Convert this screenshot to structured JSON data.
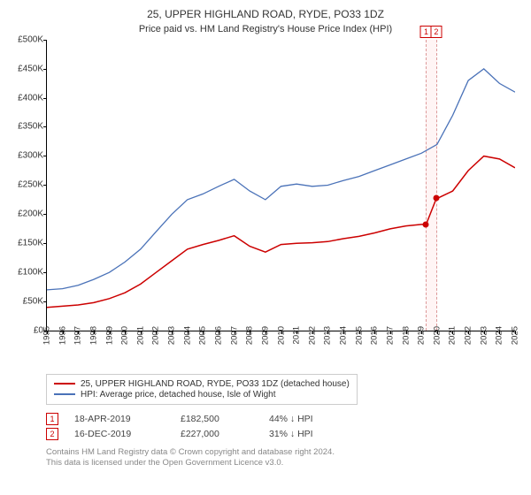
{
  "title": "25, UPPER HIGHLAND ROAD, RYDE, PO33 1DZ",
  "subtitle": "Price paid vs. HM Land Registry's House Price Index (HPI)",
  "chart": {
    "type": "line",
    "background_color": "#ffffff",
    "title_fontsize": 12,
    "label_fontsize": 10,
    "ylim": [
      0,
      500000
    ],
    "ytick_step": 50000,
    "ytick_labels": [
      "£0",
      "£50K",
      "£100K",
      "£150K",
      "£200K",
      "£250K",
      "£300K",
      "£350K",
      "£400K",
      "£450K",
      "£500K"
    ],
    "xlim": [
      1995,
      2025
    ],
    "xtick_step": 1,
    "xtick_labels": [
      "1995",
      "1996",
      "1997",
      "1998",
      "1999",
      "2000",
      "2001",
      "2002",
      "2003",
      "2004",
      "2005",
      "2006",
      "2007",
      "2008",
      "2009",
      "2010",
      "2011",
      "2012",
      "2013",
      "2014",
      "2015",
      "2016",
      "2017",
      "2018",
      "2019",
      "2020",
      "2021",
      "2022",
      "2023",
      "2024",
      "2025"
    ],
    "series": [
      {
        "name": "red",
        "label": "25, UPPER HIGHLAND ROAD, RYDE, PO33 1DZ (detached house)",
        "color": "#cc0000",
        "line_width": 1.5,
        "x": [
          1995,
          1996,
          1997,
          1998,
          1999,
          2000,
          2001,
          2002,
          2003,
          2004,
          2005,
          2006,
          2007,
          2008,
          2009,
          2010,
          2011,
          2012,
          2013,
          2014,
          2015,
          2016,
          2017,
          2018,
          2019,
          2019.3,
          2019.95,
          2020,
          2021,
          2022,
          2023,
          2024,
          2025
        ],
        "y": [
          40000,
          42000,
          44000,
          48000,
          55000,
          65000,
          80000,
          100000,
          120000,
          140000,
          148000,
          155000,
          163000,
          145000,
          135000,
          148000,
          150000,
          151000,
          153000,
          158000,
          162000,
          168000,
          175000,
          180000,
          182500,
          182500,
          227000,
          227000,
          240000,
          275000,
          300000,
          295000,
          280000
        ]
      },
      {
        "name": "blue",
        "label": "HPI: Average price, detached house, Isle of Wight",
        "color": "#4a72b8",
        "line_width": 1.3,
        "x": [
          1995,
          1996,
          1997,
          1998,
          1999,
          2000,
          2001,
          2002,
          2003,
          2004,
          2005,
          2006,
          2007,
          2008,
          2009,
          2010,
          2011,
          2012,
          2013,
          2014,
          2015,
          2016,
          2017,
          2018,
          2019,
          2020,
          2021,
          2022,
          2023,
          2024,
          2025
        ],
        "y": [
          70000,
          72000,
          78000,
          88000,
          100000,
          118000,
          140000,
          170000,
          200000,
          225000,
          235000,
          248000,
          260000,
          240000,
          225000,
          248000,
          252000,
          248000,
          250000,
          258000,
          265000,
          275000,
          285000,
          295000,
          305000,
          320000,
          370000,
          430000,
          450000,
          425000,
          410000
        ]
      }
    ],
    "annotations": {
      "band": {
        "x_start": 2019.25,
        "x_end": 2020.0,
        "fill": "#fff5f5",
        "border": "#d99"
      },
      "labels": [
        {
          "text": "1",
          "x": 2019.3
        },
        {
          "text": "2",
          "x": 2019.95
        }
      ],
      "markers": [
        {
          "x": 2019.3,
          "y": 182500,
          "color": "#cc0000"
        },
        {
          "x": 2019.95,
          "y": 227000,
          "color": "#cc0000"
        }
      ]
    }
  },
  "legend": {
    "items": [
      {
        "color": "#cc0000",
        "label": "25, UPPER HIGHLAND ROAD, RYDE, PO33 1DZ (detached house)"
      },
      {
        "color": "#4a72b8",
        "label": "HPI: Average price, detached house, Isle of Wight"
      }
    ]
  },
  "transactions": [
    {
      "badge": "1",
      "date": "18-APR-2019",
      "price": "£182,500",
      "hpi_delta": "44% ↓ HPI"
    },
    {
      "badge": "2",
      "date": "16-DEC-2019",
      "price": "£227,000",
      "hpi_delta": "31% ↓ HPI"
    }
  ],
  "footer": {
    "line1": "Contains HM Land Registry data © Crown copyright and database right 2024.",
    "line2": "This data is licensed under the Open Government Licence v3.0."
  }
}
